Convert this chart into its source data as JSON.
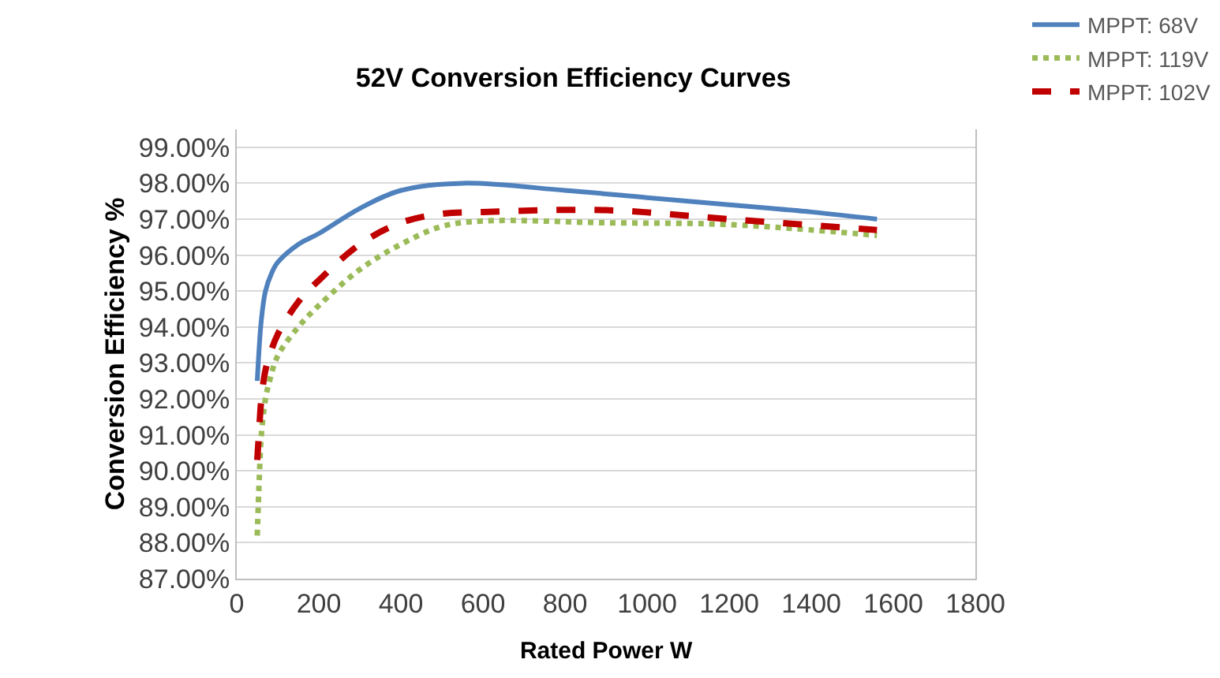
{
  "chart_data": {
    "type": "line",
    "title": "52V Conversion Efficiency Curves",
    "xlabel": "Rated Power W",
    "ylabel": "Conversion Efficiency %",
    "series": [
      {
        "name": "MPPT: 68V",
        "color": "#4f81bd",
        "line_style": "solid",
        "x": [
          50,
          60,
          70,
          85,
          100,
          150,
          200,
          300,
          400,
          550,
          800,
          1000,
          1200,
          1400,
          1560
        ],
        "values": [
          92.5,
          94.2,
          95.0,
          95.5,
          95.8,
          96.3,
          96.6,
          97.3,
          97.8,
          98.0,
          97.8,
          97.6,
          97.4,
          97.2,
          97.0
        ]
      },
      {
        "name": "MPPT: 119V",
        "color": "#9bbb59",
        "line_style": "dotted",
        "x": [
          50,
          55,
          60,
          70,
          80,
          100,
          150,
          200,
          300,
          400,
          500,
          600,
          900,
          1200,
          1560
        ],
        "values": [
          88.2,
          89.8,
          91.0,
          92.0,
          92.5,
          93.2,
          94.0,
          94.6,
          95.6,
          96.3,
          96.8,
          96.95,
          96.9,
          96.85,
          96.55
        ]
      },
      {
        "name": "MPPT: 102V",
        "color": "#c00000",
        "line_style": "dashed",
        "x": [
          50,
          55,
          60,
          70,
          80,
          100,
          150,
          200,
          300,
          400,
          500,
          600,
          900,
          1200,
          1560
        ],
        "values": [
          90.3,
          91.2,
          92.0,
          92.8,
          93.2,
          93.8,
          94.7,
          95.3,
          96.3,
          96.9,
          97.15,
          97.2,
          97.25,
          97.0,
          96.7
        ]
      }
    ],
    "xlim": [
      0,
      1800
    ],
    "xticks": [
      0,
      200,
      400,
      600,
      800,
      1000,
      1200,
      1400,
      1600,
      1800
    ],
    "ylim": [
      87,
      99.5
    ],
    "yticks": [
      {
        "value": 87,
        "label": "87.00%"
      },
      {
        "value": 88,
        "label": "88.00%"
      },
      {
        "value": 89,
        "label": "89.00%"
      },
      {
        "value": 90,
        "label": "90.00%"
      },
      {
        "value": 91,
        "label": "91.00%"
      },
      {
        "value": 92,
        "label": "92.00%"
      },
      {
        "value": 93,
        "label": "93.00%"
      },
      {
        "value": 94,
        "label": "94.00%"
      },
      {
        "value": 95,
        "label": "95.00%"
      },
      {
        "value": 96,
        "label": "96.00%"
      },
      {
        "value": 97,
        "label": "97.00%"
      },
      {
        "value": 98,
        "label": "98.00%"
      },
      {
        "value": 99,
        "label": "99.00%"
      }
    ],
    "grid": "y",
    "legend": "top right",
    "marker": "none"
  }
}
